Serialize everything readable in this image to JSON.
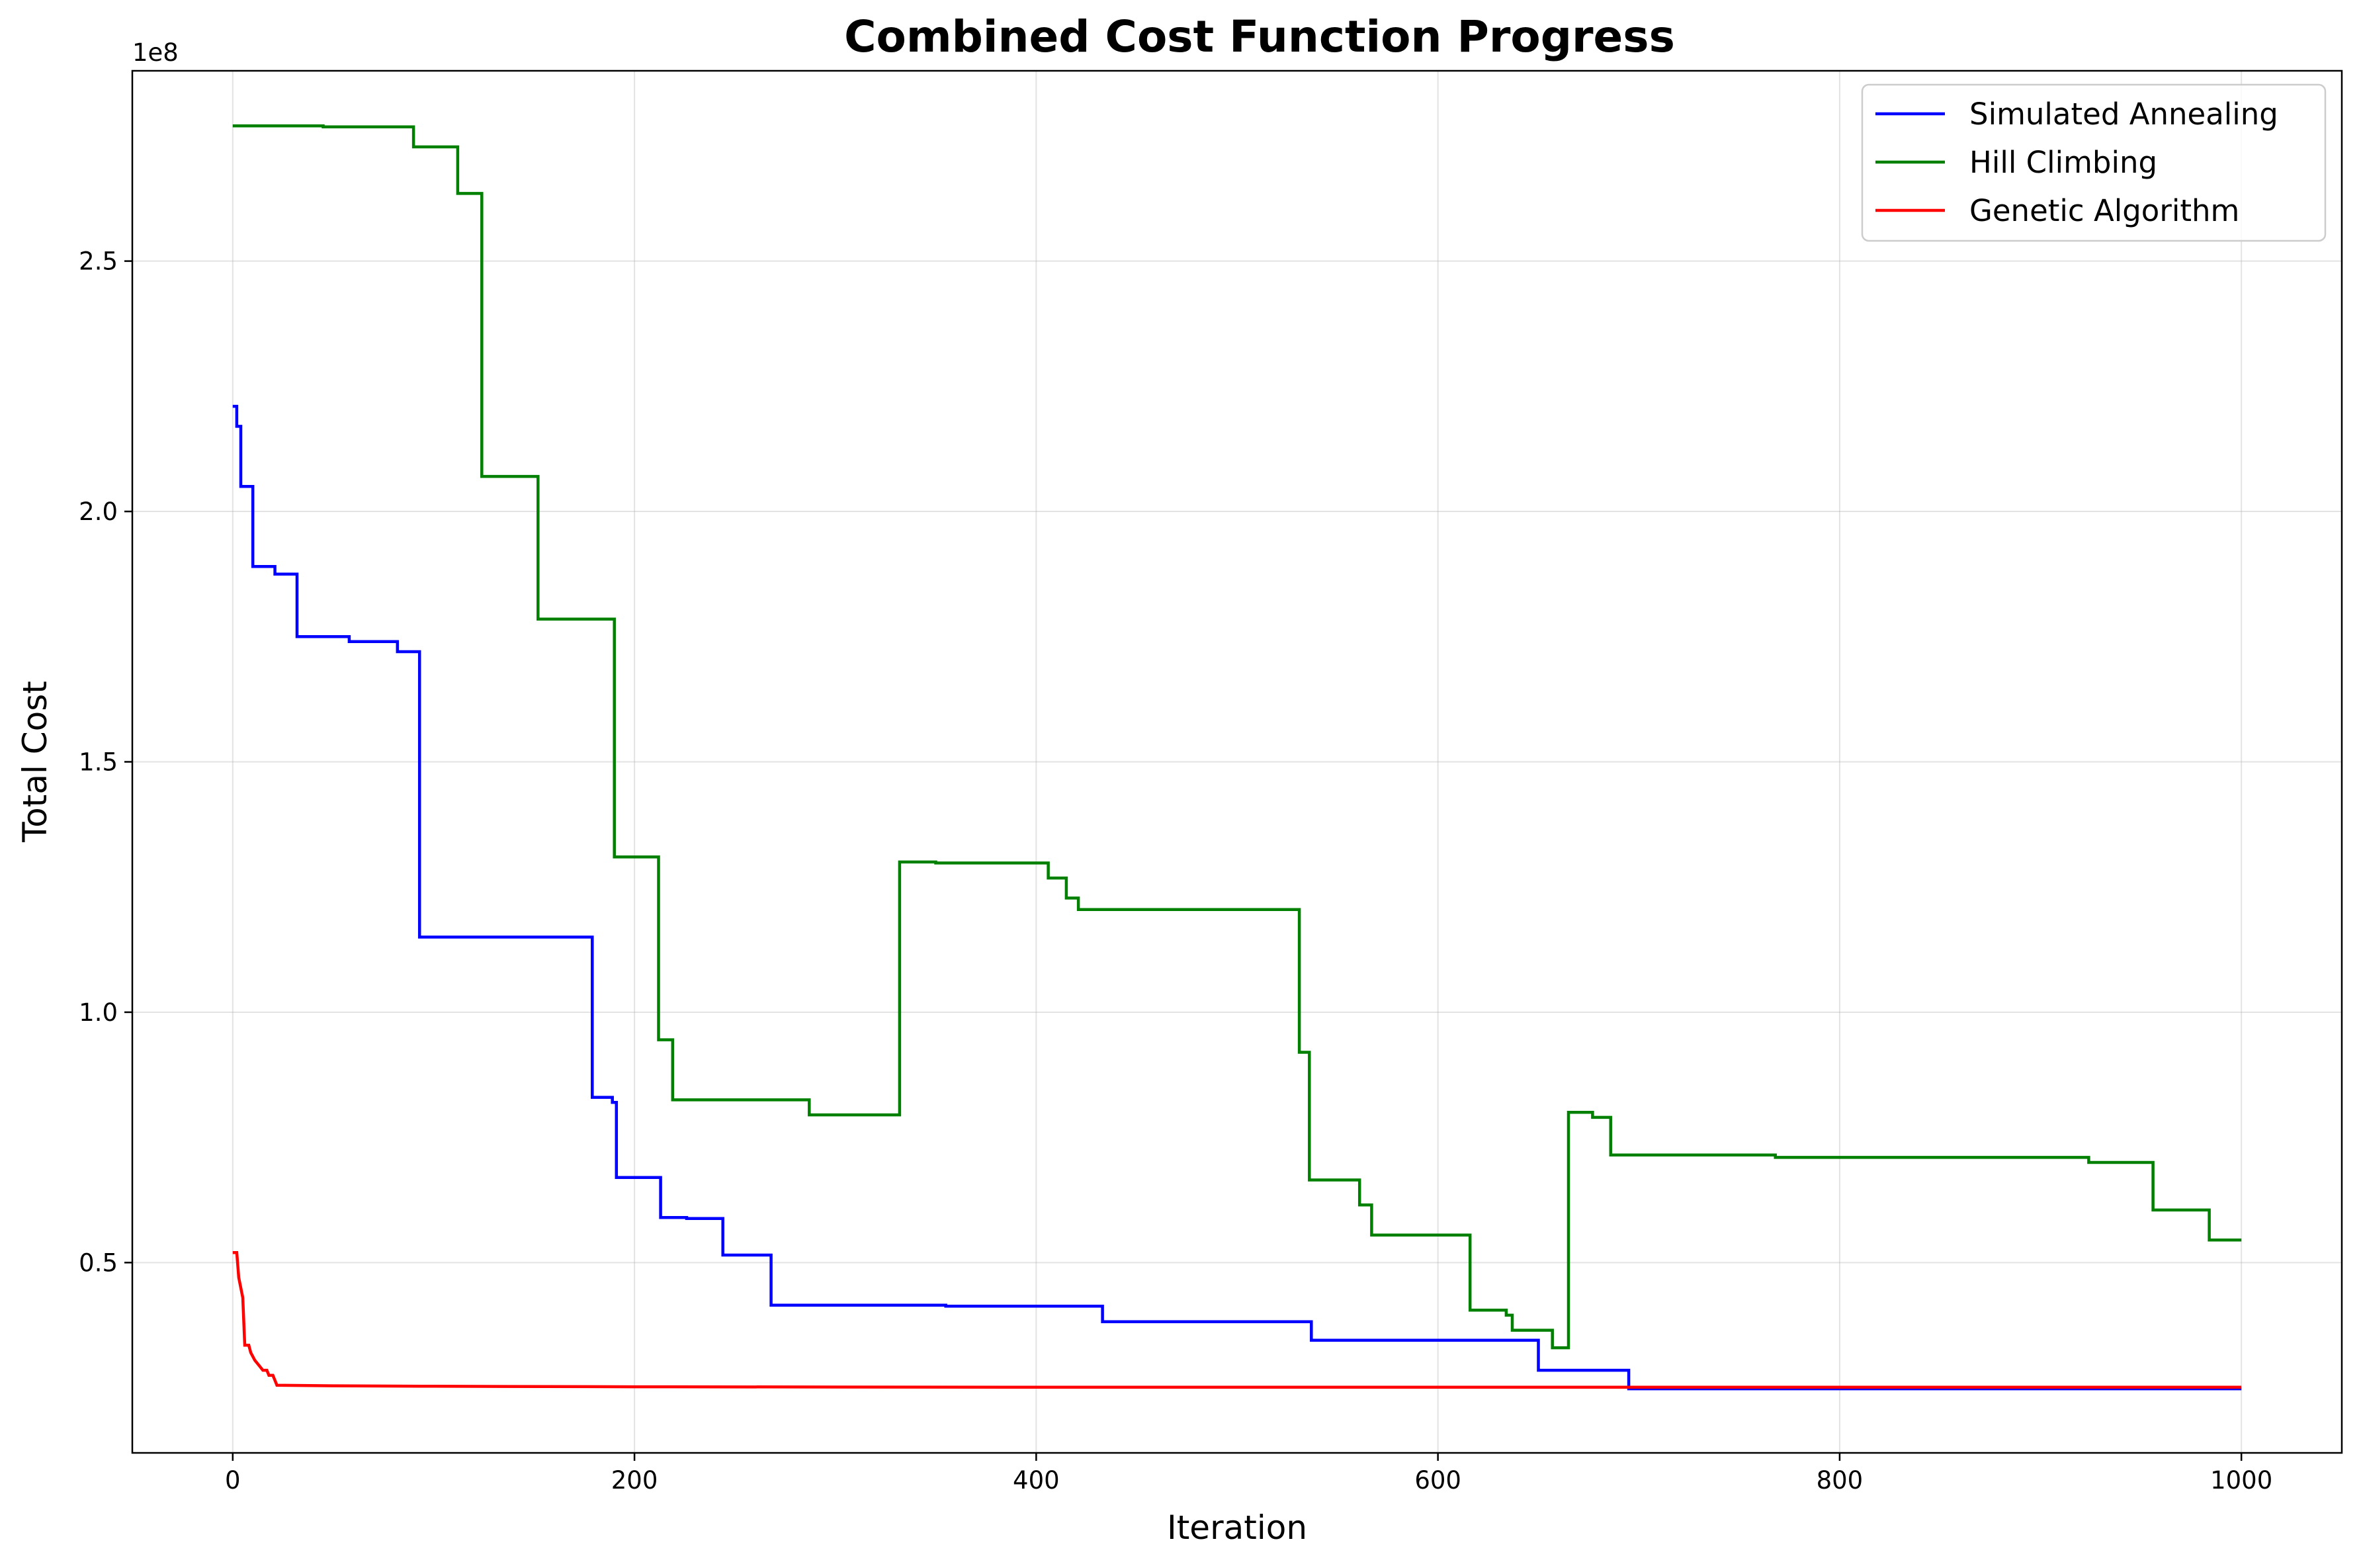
{
  "chart_data": {
    "type": "line",
    "title": "Combined Cost Function Progress",
    "xlabel": "Iteration",
    "ylabel": "Total Cost",
    "y_offset_label": "1e8",
    "xlim": [
      -50,
      1050
    ],
    "ylim": [
      12000000,
      288000000
    ],
    "x_ticks": [
      0,
      200,
      400,
      600,
      800,
      1000
    ],
    "x_tick_labels": [
      "0",
      "200",
      "400",
      "600",
      "800",
      "1000"
    ],
    "y_ticks": [
      50000000,
      100000000,
      150000000,
      200000000,
      250000000
    ],
    "y_tick_labels": [
      "0.5",
      "1.0",
      "1.5",
      "2.0",
      "2.5"
    ],
    "grid": true,
    "legend_position": "top-right",
    "series": [
      {
        "name": "Simulated Annealing",
        "color": "#0000ff",
        "points": [
          [
            0,
            221000000
          ],
          [
            2,
            221000000
          ],
          [
            2,
            217000000
          ],
          [
            4,
            217000000
          ],
          [
            4,
            205000000
          ],
          [
            10,
            205000000
          ],
          [
            10,
            189000000
          ],
          [
            21,
            189000000
          ],
          [
            21,
            187500000
          ],
          [
            32,
            187500000
          ],
          [
            32,
            175000000
          ],
          [
            58,
            175000000
          ],
          [
            58,
            174000000
          ],
          [
            82,
            174000000
          ],
          [
            82,
            172000000
          ],
          [
            93,
            172000000
          ],
          [
            93,
            115000000
          ],
          [
            179,
            115000000
          ],
          [
            179,
            83000000
          ],
          [
            189,
            83000000
          ],
          [
            189,
            82000000
          ],
          [
            191,
            82000000
          ],
          [
            191,
            67000000
          ],
          [
            213,
            67000000
          ],
          [
            213,
            59000000
          ],
          [
            226,
            59000000
          ],
          [
            226,
            58800000
          ],
          [
            244,
            58800000
          ],
          [
            244,
            51500000
          ],
          [
            268,
            51500000
          ],
          [
            268,
            41500000
          ],
          [
            355,
            41500000
          ],
          [
            355,
            41300000
          ],
          [
            433,
            41300000
          ],
          [
            433,
            38200000
          ],
          [
            537,
            38200000
          ],
          [
            537,
            34500000
          ],
          [
            650,
            34500000
          ],
          [
            650,
            28500000
          ],
          [
            695,
            28500000
          ],
          [
            695,
            24800000
          ],
          [
            1000,
            24800000
          ]
        ]
      },
      {
        "name": "Hill Climbing",
        "color": "#008000",
        "points": [
          [
            0,
            277000000
          ],
          [
            45,
            277000000
          ],
          [
            45,
            276800000
          ],
          [
            90,
            276800000
          ],
          [
            90,
            272800000
          ],
          [
            112,
            272800000
          ],
          [
            112,
            263500000
          ],
          [
            124,
            263500000
          ],
          [
            124,
            207000000
          ],
          [
            152,
            207000000
          ],
          [
            152,
            178500000
          ],
          [
            190,
            178500000
          ],
          [
            190,
            131000000
          ],
          [
            212,
            131000000
          ],
          [
            212,
            94500000
          ],
          [
            219,
            94500000
          ],
          [
            219,
            82500000
          ],
          [
            287,
            82500000
          ],
          [
            287,
            79500000
          ],
          [
            332,
            79500000
          ],
          [
            332,
            130000000
          ],
          [
            350,
            130000000
          ],
          [
            350,
            129800000
          ],
          [
            406,
            129800000
          ],
          [
            406,
            126800000
          ],
          [
            415,
            126800000
          ],
          [
            415,
            122800000
          ],
          [
            421,
            122800000
          ],
          [
            421,
            120500000
          ],
          [
            531,
            120500000
          ],
          [
            531,
            92000000
          ],
          [
            536,
            92000000
          ],
          [
            536,
            66500000
          ],
          [
            561,
            66500000
          ],
          [
            561,
            61500000
          ],
          [
            567,
            61500000
          ],
          [
            567,
            55500000
          ],
          [
            616,
            55500000
          ],
          [
            616,
            40500000
          ],
          [
            634,
            40500000
          ],
          [
            634,
            39500000
          ],
          [
            637,
            39500000
          ],
          [
            637,
            36500000
          ],
          [
            657,
            36500000
          ],
          [
            657,
            33000000
          ],
          [
            665,
            33000000
          ],
          [
            665,
            80000000
          ],
          [
            677,
            80000000
          ],
          [
            677,
            79000000
          ],
          [
            686,
            79000000
          ],
          [
            686,
            71500000
          ],
          [
            768,
            71500000
          ],
          [
            768,
            71000000
          ],
          [
            924,
            71000000
          ],
          [
            924,
            70000000
          ],
          [
            956,
            70000000
          ],
          [
            956,
            60500000
          ],
          [
            984,
            60500000
          ],
          [
            984,
            54500000
          ],
          [
            1000,
            54500000
          ]
        ]
      },
      {
        "name": "Genetic Algorithm",
        "color": "#ff0000",
        "points": [
          [
            0,
            52000000
          ],
          [
            2,
            52000000
          ],
          [
            3,
            47000000
          ],
          [
            5,
            43000000
          ],
          [
            6,
            33500000
          ],
          [
            8,
            33500000
          ],
          [
            9,
            32000000
          ],
          [
            11,
            30500000
          ],
          [
            13,
            29500000
          ],
          [
            15,
            28500000
          ],
          [
            17,
            28500000
          ],
          [
            18,
            27500000
          ],
          [
            20,
            27500000
          ],
          [
            21,
            26500000
          ],
          [
            22,
            25500000
          ],
          [
            50,
            25400000
          ],
          [
            100,
            25300000
          ],
          [
            200,
            25200000
          ],
          [
            400,
            25100000
          ],
          [
            600,
            25100000
          ],
          [
            800,
            25100000
          ],
          [
            1000,
            25100000
          ]
        ]
      }
    ]
  }
}
